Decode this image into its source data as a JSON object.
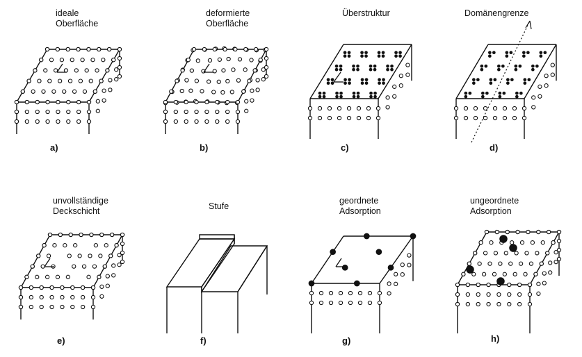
{
  "panels": [
    {
      "id": "a",
      "caption": [
        "ideale",
        "Oberfläche"
      ],
      "label": "a)"
    },
    {
      "id": "b",
      "caption": [
        "deformierte",
        "Oberfläche"
      ],
      "label": "b)"
    },
    {
      "id": "c",
      "caption": [
        "Überstruktur"
      ],
      "label": "c)"
    },
    {
      "id": "d",
      "caption": [
        "Domänengrenze"
      ],
      "label": "d)"
    },
    {
      "id": "e",
      "caption": [
        "unvollständige",
        "Deckschicht"
      ],
      "label": "e)"
    },
    {
      "id": "f",
      "caption": [
        "Stufe"
      ],
      "label": "f)"
    },
    {
      "id": "g",
      "caption": [
        "geordnete",
        "Adsorption"
      ],
      "label": "g)"
    },
    {
      "id": "h",
      "caption": [
        "ungeordnete",
        "Adsorption"
      ],
      "label": "h)"
    }
  ]
}
